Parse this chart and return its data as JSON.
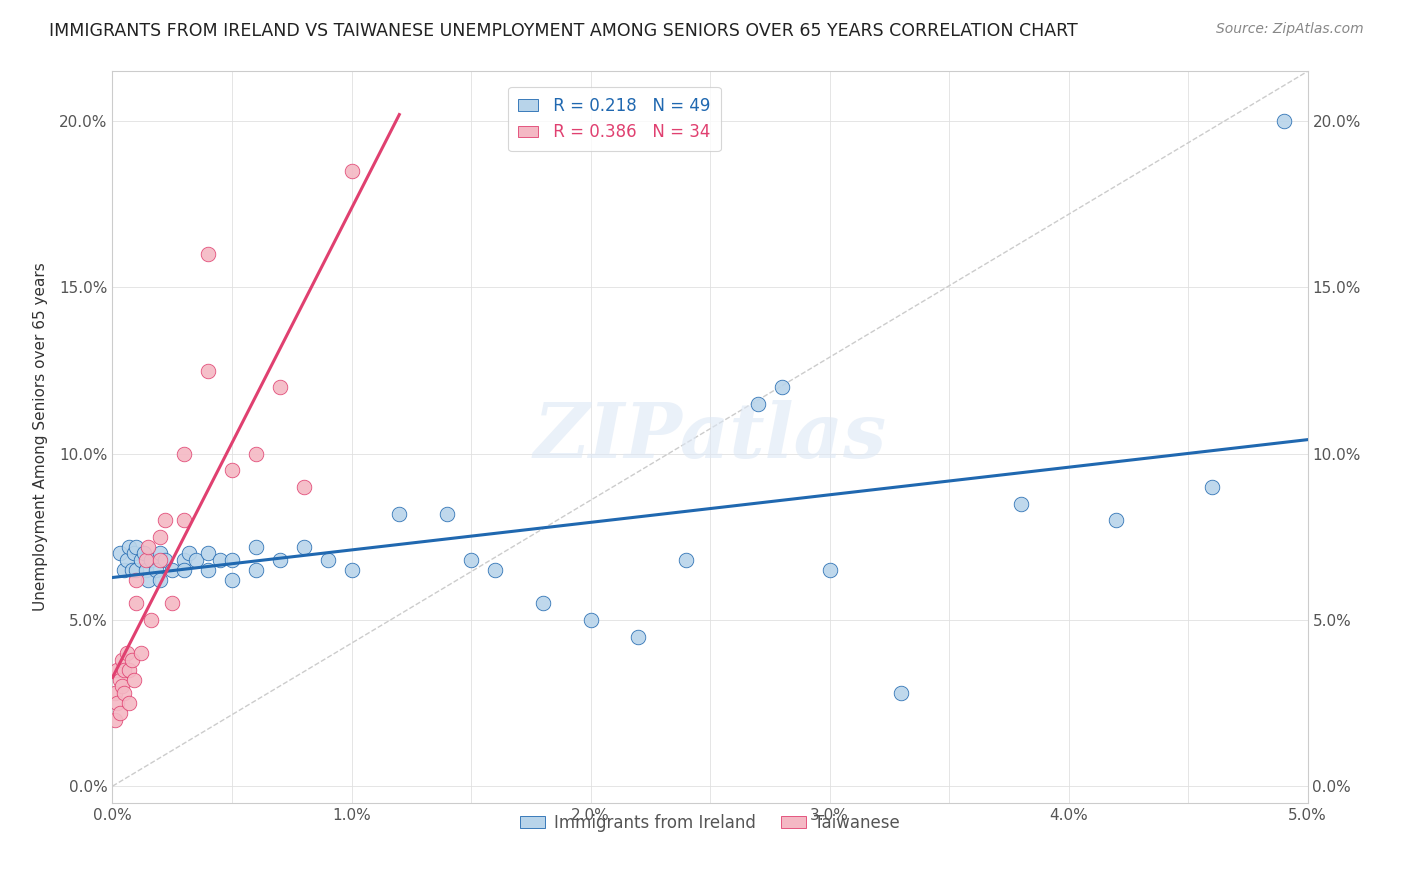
{
  "title": "IMMIGRANTS FROM IRELAND VS TAIWANESE UNEMPLOYMENT AMONG SENIORS OVER 65 YEARS CORRELATION CHART",
  "source": "Source: ZipAtlas.com",
  "ylabel": "Unemployment Among Seniors over 65 years",
  "xlabel": "",
  "xlim": [
    0.0,
    0.05
  ],
  "ylim": [
    -0.005,
    0.215
  ],
  "x_ticks": [
    0.0,
    0.005,
    0.01,
    0.015,
    0.02,
    0.025,
    0.03,
    0.035,
    0.04,
    0.045,
    0.05
  ],
  "x_tick_labels": [
    "0.0%",
    "",
    "1.0%",
    "",
    "2.0%",
    "",
    "3.0%",
    "",
    "4.0%",
    "",
    "5.0%"
  ],
  "y_ticks": [
    0.0,
    0.05,
    0.1,
    0.15,
    0.2
  ],
  "y_tick_labels": [
    "0.0%",
    "5.0%",
    "10.0%",
    "15.0%",
    "20.0%"
  ],
  "blue_color": "#b8d4ea",
  "pink_color": "#f4b8c4",
  "blue_line_color": "#2068b0",
  "pink_line_color": "#e04070",
  "R_blue": "0.218",
  "N_blue": "49",
  "R_pink": "0.386",
  "N_pink": "34",
  "blue_scatter_x": [
    0.0003,
    0.0005,
    0.0006,
    0.0007,
    0.0008,
    0.0009,
    0.001,
    0.001,
    0.0012,
    0.0013,
    0.0014,
    0.0015,
    0.0016,
    0.0018,
    0.002,
    0.002,
    0.0022,
    0.0025,
    0.003,
    0.003,
    0.0032,
    0.0035,
    0.004,
    0.004,
    0.0045,
    0.005,
    0.005,
    0.006,
    0.006,
    0.007,
    0.008,
    0.009,
    0.01,
    0.012,
    0.014,
    0.015,
    0.016,
    0.018,
    0.02,
    0.022,
    0.024,
    0.027,
    0.028,
    0.03,
    0.033,
    0.038,
    0.042,
    0.046,
    0.049
  ],
  "blue_scatter_y": [
    0.07,
    0.065,
    0.068,
    0.072,
    0.065,
    0.07,
    0.072,
    0.065,
    0.068,
    0.07,
    0.065,
    0.062,
    0.068,
    0.065,
    0.07,
    0.062,
    0.068,
    0.065,
    0.068,
    0.065,
    0.07,
    0.068,
    0.065,
    0.07,
    0.068,
    0.068,
    0.062,
    0.072,
    0.065,
    0.068,
    0.072,
    0.068,
    0.065,
    0.082,
    0.082,
    0.068,
    0.065,
    0.055,
    0.05,
    0.045,
    0.068,
    0.115,
    0.12,
    0.065,
    0.028,
    0.085,
    0.08,
    0.09,
    0.2
  ],
  "pink_scatter_x": [
    0.0001,
    0.0001,
    0.0002,
    0.0002,
    0.0003,
    0.0003,
    0.0004,
    0.0004,
    0.0005,
    0.0005,
    0.0006,
    0.0007,
    0.0007,
    0.0008,
    0.0009,
    0.001,
    0.001,
    0.0012,
    0.0014,
    0.0015,
    0.0016,
    0.002,
    0.002,
    0.0022,
    0.0025,
    0.003,
    0.003,
    0.004,
    0.004,
    0.005,
    0.006,
    0.007,
    0.008,
    0.01
  ],
  "pink_scatter_y": [
    0.02,
    0.028,
    0.035,
    0.025,
    0.032,
    0.022,
    0.038,
    0.03,
    0.035,
    0.028,
    0.04,
    0.035,
    0.025,
    0.038,
    0.032,
    0.062,
    0.055,
    0.04,
    0.068,
    0.072,
    0.05,
    0.068,
    0.075,
    0.08,
    0.055,
    0.1,
    0.08,
    0.16,
    0.125,
    0.095,
    0.1,
    0.12,
    0.09,
    0.185
  ],
  "dashed_line": [
    [
      0.0,
      0.05
    ],
    [
      0.0,
      0.215
    ]
  ],
  "watermark": "ZIPatlas",
  "background_color": "#ffffff",
  "grid_color": "#e0e0e0"
}
